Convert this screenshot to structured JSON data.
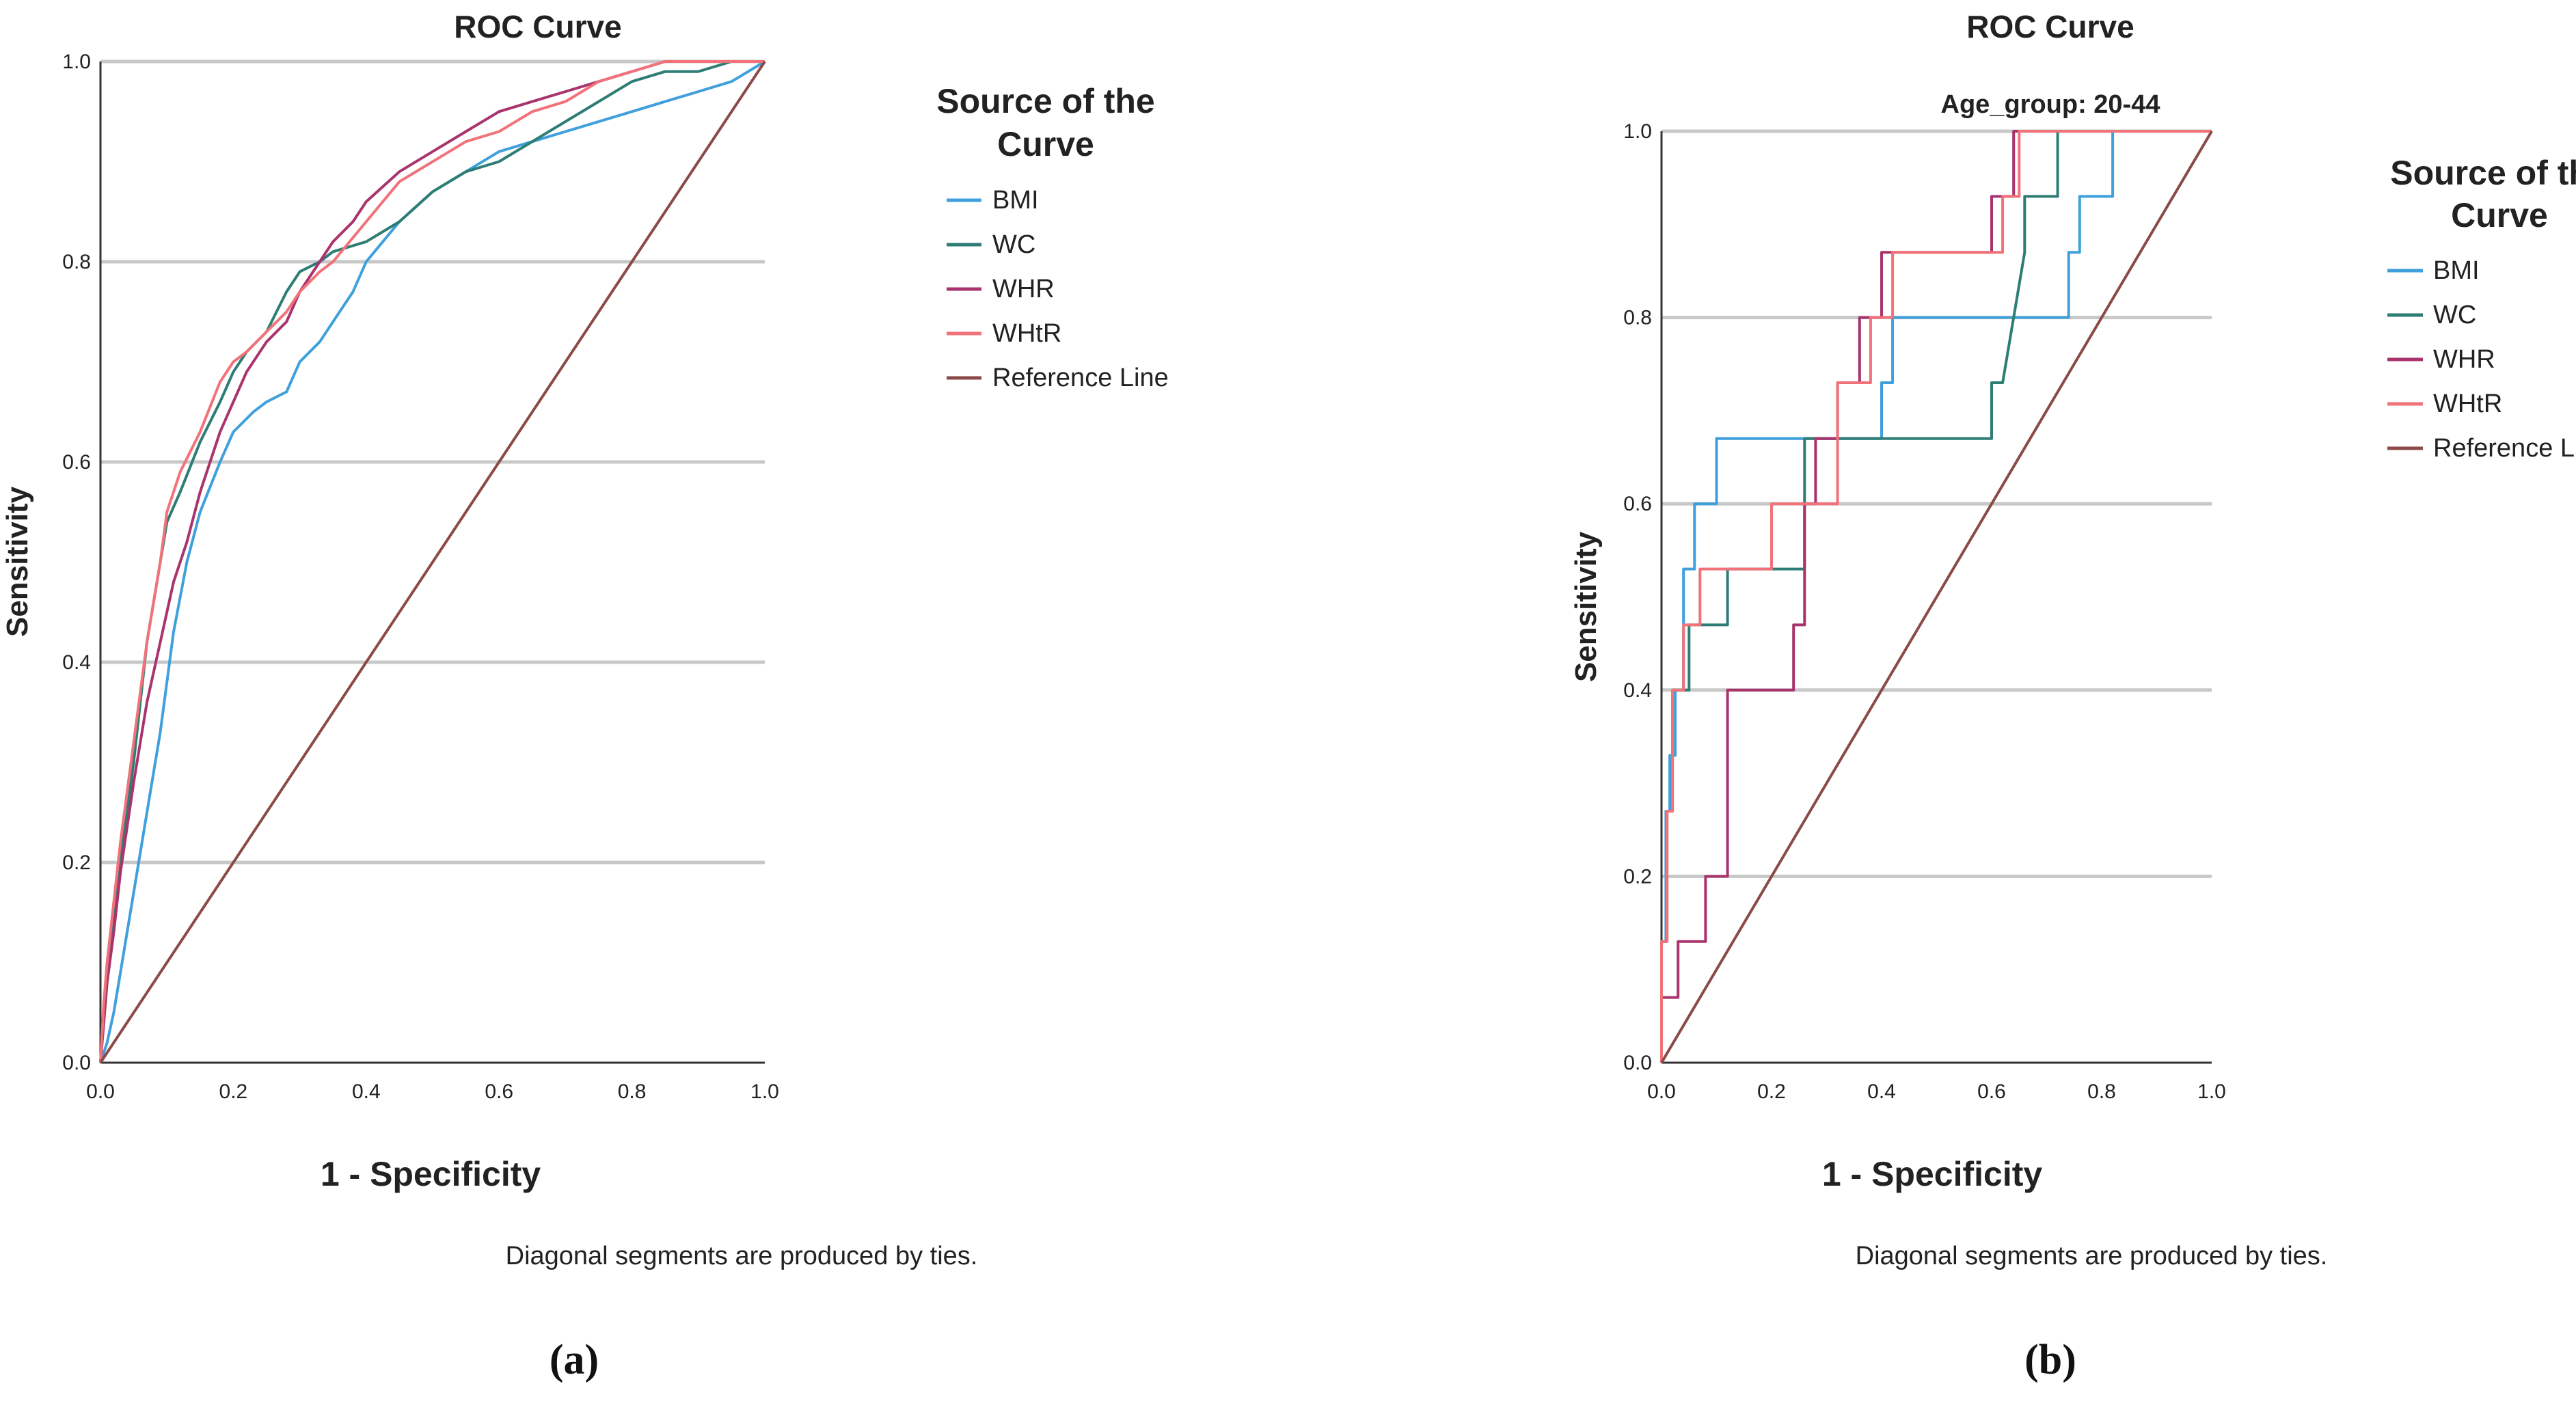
{
  "chart_data": [
    {
      "type": "line",
      "panel_label": "(a)",
      "title": "ROC Curve",
      "subtitle": "",
      "xlabel": "1 - Specificity",
      "ylabel": "Sensitivity",
      "xlim": [
        0,
        1
      ],
      "ylim": [
        0,
        1
      ],
      "ticks": [
        "0.0",
        "0.2",
        "0.4",
        "0.6",
        "0.8",
        "1.0"
      ],
      "grid": "horizontal",
      "legend_title": "Source of the Curve",
      "note": "Diagonal segments are produced by ties.",
      "series": [
        {
          "name": "BMI",
          "color": "#3fa0dc",
          "x": [
            0,
            0.01,
            0.02,
            0.03,
            0.04,
            0.05,
            0.07,
            0.09,
            0.11,
            0.13,
            0.15,
            0.18,
            0.2,
            0.23,
            0.25,
            0.28,
            0.3,
            0.33,
            0.35,
            0.38,
            0.4,
            0.45,
            0.5,
            0.55,
            0.6,
            0.65,
            0.7,
            0.75,
            0.8,
            0.85,
            0.9,
            0.95,
            1
          ],
          "y": [
            0,
            0.02,
            0.05,
            0.09,
            0.13,
            0.17,
            0.25,
            0.33,
            0.43,
            0.5,
            0.55,
            0.6,
            0.63,
            0.65,
            0.66,
            0.67,
            0.7,
            0.72,
            0.74,
            0.77,
            0.8,
            0.84,
            0.87,
            0.89,
            0.91,
            0.92,
            0.93,
            0.94,
            0.95,
            0.96,
            0.97,
            0.98,
            1
          ]
        },
        {
          "name": "WC",
          "color": "#2e7d74",
          "x": [
            0,
            0.005,
            0.01,
            0.02,
            0.03,
            0.05,
            0.07,
            0.09,
            0.1,
            0.12,
            0.15,
            0.18,
            0.2,
            0.22,
            0.25,
            0.28,
            0.3,
            0.33,
            0.35,
            0.4,
            0.45,
            0.5,
            0.55,
            0.6,
            0.65,
            0.7,
            0.75,
            0.8,
            0.85,
            0.9,
            0.95,
            1
          ],
          "y": [
            0,
            0.05,
            0.1,
            0.15,
            0.2,
            0.3,
            0.42,
            0.5,
            0.54,
            0.57,
            0.62,
            0.66,
            0.69,
            0.71,
            0.73,
            0.77,
            0.79,
            0.8,
            0.81,
            0.82,
            0.84,
            0.87,
            0.89,
            0.9,
            0.92,
            0.94,
            0.96,
            0.98,
            0.99,
            0.99,
            1,
            1
          ]
        },
        {
          "name": "WHR",
          "color": "#a9346d",
          "x": [
            0,
            0.005,
            0.01,
            0.02,
            0.03,
            0.05,
            0.07,
            0.09,
            0.11,
            0.13,
            0.15,
            0.18,
            0.2,
            0.22,
            0.25,
            0.28,
            0.3,
            0.33,
            0.35,
            0.38,
            0.4,
            0.45,
            0.5,
            0.55,
            0.6,
            0.65,
            0.7,
            0.75,
            0.8,
            0.85,
            0.9,
            0.95,
            1
          ],
          "y": [
            0,
            0.04,
            0.08,
            0.13,
            0.19,
            0.28,
            0.36,
            0.42,
            0.48,
            0.52,
            0.57,
            0.63,
            0.66,
            0.69,
            0.72,
            0.74,
            0.77,
            0.8,
            0.82,
            0.84,
            0.86,
            0.89,
            0.91,
            0.93,
            0.95,
            0.96,
            0.97,
            0.98,
            0.99,
            1,
            1,
            1,
            1
          ]
        },
        {
          "name": "WHtR",
          "color": "#f2727a",
          "x": [
            0,
            0.005,
            0.01,
            0.02,
            0.03,
            0.05,
            0.07,
            0.09,
            0.1,
            0.12,
            0.15,
            0.18,
            0.2,
            0.22,
            0.25,
            0.28,
            0.3,
            0.33,
            0.35,
            0.4,
            0.45,
            0.5,
            0.55,
            0.6,
            0.65,
            0.7,
            0.75,
            0.8,
            0.85,
            0.9,
            0.95,
            1
          ],
          "y": [
            0,
            0.06,
            0.1,
            0.16,
            0.22,
            0.32,
            0.42,
            0.5,
            0.55,
            0.59,
            0.63,
            0.68,
            0.7,
            0.71,
            0.73,
            0.75,
            0.77,
            0.79,
            0.8,
            0.84,
            0.88,
            0.9,
            0.92,
            0.93,
            0.95,
            0.96,
            0.98,
            0.99,
            1,
            1,
            1,
            1
          ]
        },
        {
          "name": "Reference Line",
          "color": "#8b4a48",
          "x": [
            0,
            1
          ],
          "y": [
            0,
            1
          ]
        }
      ]
    },
    {
      "type": "line",
      "panel_label": "(b)",
      "title": "ROC Curve",
      "subtitle": "Age_group: 20-44",
      "xlabel": "1 - Specificity",
      "ylabel": "Sensitivity",
      "xlim": [
        0,
        1
      ],
      "ylim": [
        0,
        1
      ],
      "ticks": [
        "0.0",
        "0.2",
        "0.4",
        "0.6",
        "0.8",
        "1.0"
      ],
      "grid": "horizontal",
      "legend_title": "Source of the Curve",
      "note": "Diagonal segments are produced by ties.",
      "series": [
        {
          "name": "BMI",
          "color": "#3fa0dc",
          "x": [
            0,
            0,
            0.008,
            0.008,
            0.015,
            0.015,
            0.025,
            0.025,
            0.04,
            0.04,
            0.06,
            0.06,
            0.1,
            0.1,
            0.26,
            0.26,
            0.4,
            0.4,
            0.42,
            0.42,
            0.74,
            0.74,
            0.76,
            0.76,
            0.82,
            0.82
          ],
          "y": [
            0,
            0.13,
            0.13,
            0.27,
            0.27,
            0.33,
            0.33,
            0.4,
            0.4,
            0.53,
            0.53,
            0.6,
            0.6,
            0.67,
            0.67,
            0.67,
            0.67,
            0.73,
            0.73,
            0.8,
            0.8,
            0.87,
            0.87,
            0.93,
            0.93,
            1
          ]
        },
        {
          "name": "WC",
          "color": "#2e7d74",
          "x": [
            0,
            0,
            0.01,
            0.01,
            0.02,
            0.02,
            0.05,
            0.05,
            0.12,
            0.12,
            0.26,
            0.26,
            0.6,
            0.6,
            0.62,
            0.66,
            0.66,
            0.72,
            0.72,
            1
          ],
          "y": [
            0,
            0.13,
            0.13,
            0.27,
            0.27,
            0.4,
            0.4,
            0.47,
            0.47,
            0.53,
            0.53,
            0.67,
            0.67,
            0.73,
            0.73,
            0.87,
            0.93,
            0.93,
            1,
            1
          ]
        },
        {
          "name": "WHR",
          "color": "#a9346d",
          "x": [
            0,
            0,
            0.03,
            0.03,
            0.08,
            0.08,
            0.12,
            0.12,
            0.24,
            0.24,
            0.26,
            0.26,
            0.28,
            0.28,
            0.32,
            0.32,
            0.36,
            0.36,
            0.4,
            0.4,
            0.6,
            0.6,
            0.64,
            0.64,
            1
          ],
          "y": [
            0,
            0.07,
            0.07,
            0.13,
            0.13,
            0.2,
            0.2,
            0.4,
            0.4,
            0.47,
            0.47,
            0.6,
            0.6,
            0.67,
            0.67,
            0.73,
            0.73,
            0.8,
            0.8,
            0.87,
            0.87,
            0.93,
            0.93,
            1,
            1
          ]
        },
        {
          "name": "WHtR",
          "color": "#f2727a",
          "x": [
            0,
            0,
            0.01,
            0.01,
            0.02,
            0.02,
            0.04,
            0.04,
            0.07,
            0.07,
            0.2,
            0.2,
            0.32,
            0.32,
            0.38,
            0.38,
            0.42,
            0.42,
            0.62,
            0.62,
            0.65,
            0.65,
            1
          ],
          "y": [
            0,
            0.13,
            0.13,
            0.27,
            0.27,
            0.4,
            0.4,
            0.47,
            0.47,
            0.53,
            0.53,
            0.6,
            0.6,
            0.73,
            0.73,
            0.8,
            0.8,
            0.87,
            0.87,
            0.93,
            0.93,
            1,
            1
          ]
        },
        {
          "name": "Reference Line",
          "color": "#8b4a48",
          "x": [
            0,
            1
          ],
          "y": [
            0,
            1
          ]
        }
      ]
    }
  ]
}
